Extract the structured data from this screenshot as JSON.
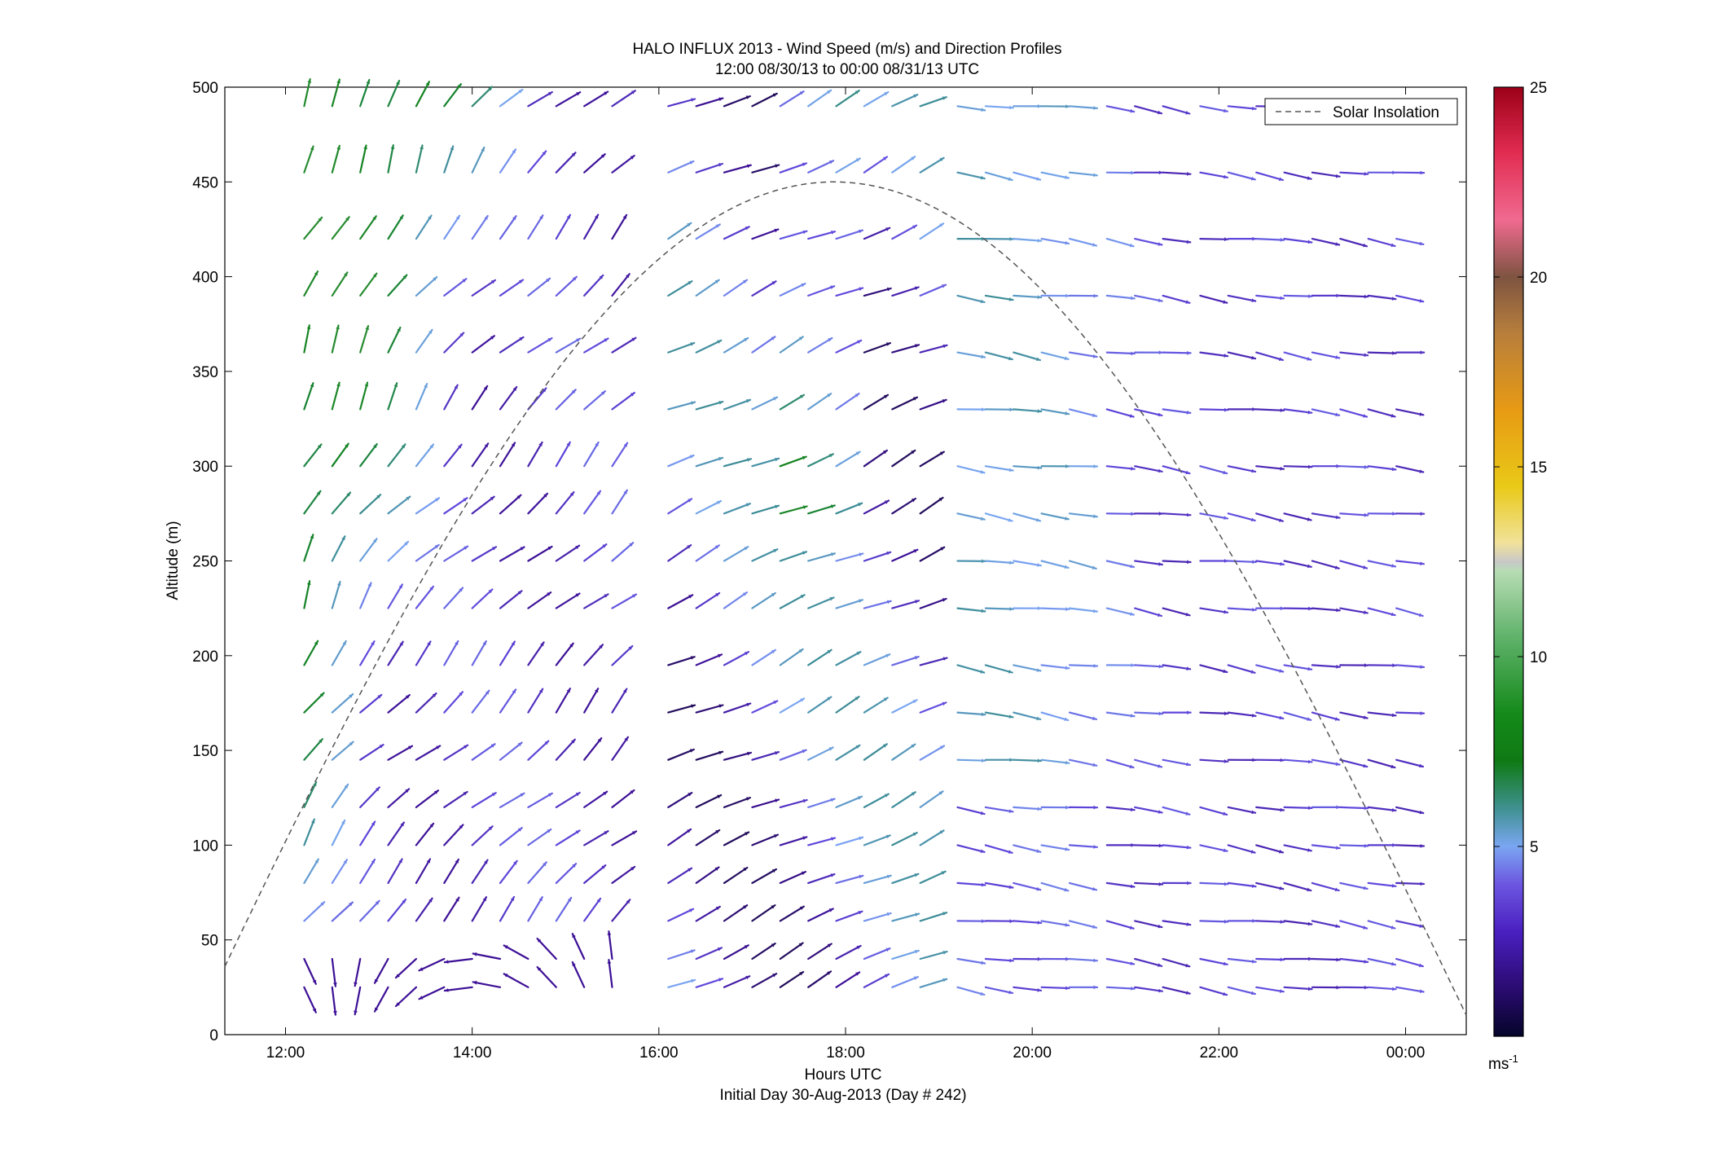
{
  "chart_data": {
    "type": "vector-field",
    "title": "HALO INFLUX 2013 - Wind Speed (m/s) and Direction Profiles",
    "subtitle": "12:00 08/30/13 to 00:00 08/31/13  UTC",
    "xlabel": "Hours UTC",
    "xlabel2": "Initial Day 30-Aug-2013 (Day # 242)",
    "ylabel": "Altitude (m)",
    "x_ticks": [
      "12:00",
      "14:00",
      "16:00",
      "18:00",
      "20:00",
      "22:00",
      "00:00"
    ],
    "x_tick_hours": [
      12,
      14,
      16,
      18,
      20,
      22,
      24
    ],
    "xlim_hours": [
      11.35,
      24.65
    ],
    "y_ticks": [
      "0",
      "50",
      "100",
      "150",
      "200",
      "250",
      "300",
      "350",
      "400",
      "450",
      "500"
    ],
    "ylim": [
      0,
      500
    ],
    "colorbar": {
      "ticks": [
        "5",
        "10",
        "15",
        "20",
        "25"
      ],
      "range": [
        0,
        25
      ],
      "unit_label": "ms",
      "unit_exponent": "-1"
    },
    "legend": {
      "entries": [
        "Solar Insolation"
      ],
      "placement": "top-right"
    },
    "solar_insolation": {
      "peak_hour": 17.9,
      "peak_altitude": 450,
      "rise_hour": 11.0,
      "set_hour": 24.75
    },
    "vectors": {
      "times_hours": [
        12.2,
        12.5,
        12.8,
        13.1,
        13.4,
        13.7,
        14.0,
        14.3,
        14.6,
        14.9,
        15.2,
        15.5,
        16.1,
        16.4,
        16.7,
        17.0,
        17.3,
        17.6,
        17.9,
        18.2,
        18.5,
        18.8,
        19.2,
        19.5,
        19.8,
        20.1,
        20.4,
        20.8,
        21.1,
        21.4,
        21.8,
        22.1,
        22.4,
        22.7,
        23.0,
        23.3,
        23.6,
        23.9
      ],
      "altitudes_m": [
        25,
        40,
        60,
        80,
        100,
        120,
        145,
        170,
        195,
        225,
        250,
        275,
        300,
        330,
        360,
        390,
        420,
        455,
        490
      ],
      "note_units": "speed in m/s, direction = compass bearing of vector arrow"
    },
    "colors": {
      "low_speed": "#2c0d73",
      "mid_speed": "#7b9ff0",
      "high_speed": "#118a1e",
      "curve": "#555555"
    }
  }
}
